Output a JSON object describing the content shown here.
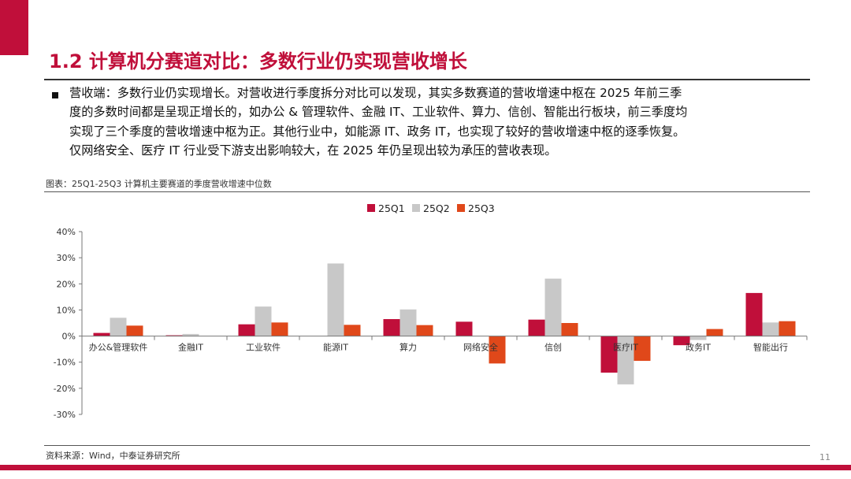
{
  "header": {
    "title": "1.2 计算机分赛道对比：多数行业仍实现营收增长"
  },
  "body": {
    "lines": [
      "营收端：多数行业仍实现增长。对营收进行季度拆分对比可以发现，其实多数赛道的营收增速中枢在 2025 年前三季",
      "度的多数时间都是呈现正增长的，如办公 & 管理软件、金融 IT、工业软件、算力、信创、智能出行板块，前三季度均",
      "实现了三个季度的营收增速中枢为正。其他行业中，如能源 IT、政务 IT，也实现了较好的营收增速中枢的逐季恢复。",
      "仅网络安全、医疗 IT 行业受下游支出影响较大，在 2025 年仍呈现出较为承压的营收表现。"
    ]
  },
  "figure": {
    "caption": "图表：25Q1-25Q3 计算机主要赛道的季度营收增速中位数"
  },
  "footer": {
    "source": "资料来源：Wind，中泰证券研究所",
    "page": "11"
  },
  "colors": {
    "accent": "#c00f3a",
    "q1": "#c00f3a",
    "q2": "#c8c8c8",
    "q3": "#e0481a"
  },
  "chart_data": {
    "type": "bar",
    "categories": [
      "办公&管理软件",
      "金融IT",
      "工业软件",
      "能源IT",
      "算力",
      "网络安全",
      "信创",
      "医疗IT",
      "政务IT",
      "智能出行"
    ],
    "series": [
      {
        "name": "25Q1",
        "values": [
          1.2,
          0.3,
          4.5,
          0.0,
          6.5,
          5.5,
          6.3,
          -14.0,
          -3.5,
          16.5
        ]
      },
      {
        "name": "25Q2",
        "values": [
          7.0,
          0.8,
          11.3,
          27.8,
          10.2,
          0.0,
          22.0,
          -18.5,
          -1.5,
          5.2
        ]
      },
      {
        "name": "25Q3",
        "values": [
          4.0,
          0.0,
          5.2,
          4.3,
          4.2,
          -10.5,
          5.0,
          -9.5,
          2.7,
          5.7
        ]
      }
    ],
    "y_tick_labels": [
      "40%",
      "30%",
      "20%",
      "10%",
      "0%",
      "-10%",
      "-20%",
      "-30%"
    ],
    "ylim": [
      -30,
      40
    ],
    "unit": "%",
    "legend_position": "top-center",
    "grid": false
  }
}
